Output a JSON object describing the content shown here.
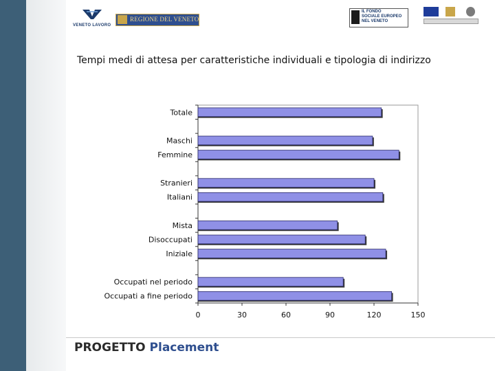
{
  "header": {
    "logo_veneto_lavoro": "VENETO LAVORO",
    "logo_regione": "REGIONE DEL VENETO",
    "logo_fse": "IL FONDO\nSOCIALE EUROPEO\nNEL VENETO"
  },
  "chart_data": {
    "type": "bar",
    "orientation": "horizontal",
    "title": "Tempi medi di attesa per caratteristiche individuali e tipologia di indirizzo",
    "xlabel": "",
    "ylabel": "",
    "xlim": [
      0,
      150
    ],
    "xticks": [
      0,
      30,
      60,
      90,
      120,
      150
    ],
    "grid": false,
    "legend": "none",
    "categories": [
      "Totale",
      "Maschi",
      "Femmine",
      "Stranieri",
      "Italiani",
      "Mista",
      "Disoccupati",
      "Iniziale",
      "Occupati nel periodo",
      "Occupati a fine periodo"
    ],
    "groups": [
      [
        0
      ],
      [
        1,
        2
      ],
      [
        3,
        4
      ],
      [
        5,
        6,
        7
      ],
      [
        8,
        9
      ]
    ],
    "values": [
      125,
      119,
      137,
      120,
      126,
      95,
      114,
      128,
      99,
      132
    ],
    "bar_color": "#8f90e6",
    "bar_edge": "#2a2a6a"
  },
  "footer": {
    "word1": "PROGETTO",
    "word2": "Placement"
  }
}
